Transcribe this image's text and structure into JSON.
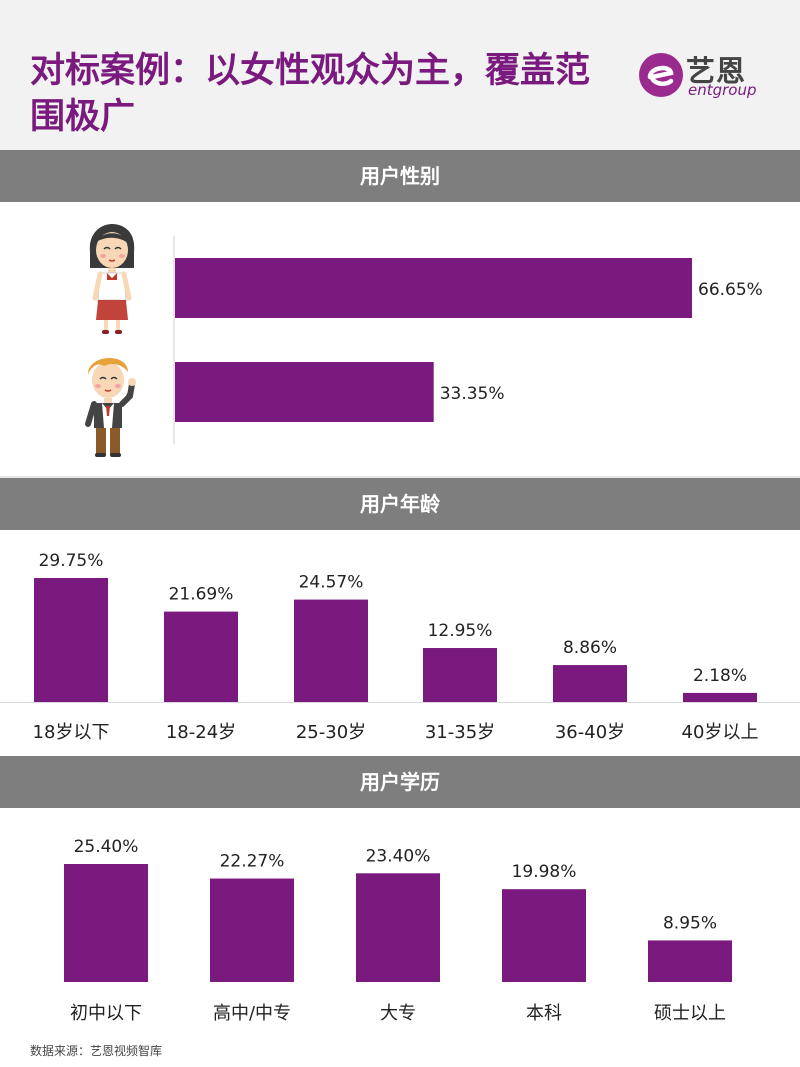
{
  "title": "对标案例：以女性观众为主，覆盖范围极广",
  "logo": {
    "cn": "艺恩",
    "en": "entgroup"
  },
  "source": "数据来源：艺恩视频智库",
  "colors": {
    "bar": "#7a1a7e",
    "header": "#7f7e7f",
    "title": "#7a1a7e"
  },
  "sections": {
    "gender": {
      "header": "用户性别"
    },
    "age": {
      "header": "用户年龄"
    },
    "education": {
      "header": "用户学历"
    }
  },
  "chart_data": [
    {
      "type": "bar",
      "orientation": "horizontal",
      "title": "用户性别",
      "categories": [
        "female-icon",
        "male-icon"
      ],
      "values": [
        66.65,
        33.35
      ],
      "value_labels": [
        "66.65%",
        "33.35%"
      ],
      "xlim": [
        0,
        66.65
      ]
    },
    {
      "type": "bar",
      "title": "用户年龄",
      "categories": [
        "18岁以下",
        "18-24岁",
        "25-30岁",
        "31-35岁",
        "36-40岁",
        "40岁以上"
      ],
      "values": [
        29.75,
        21.69,
        24.57,
        12.95,
        8.86,
        2.18
      ],
      "value_labels": [
        "29.75%",
        "21.69%",
        "24.57%",
        "12.95%",
        "8.86%",
        "2.18%"
      ],
      "ylim": [
        0,
        29.75
      ]
    },
    {
      "type": "bar",
      "title": "用户学历",
      "categories": [
        "初中以下",
        "高中/中专",
        "大专",
        "本科",
        "硕士以上"
      ],
      "values": [
        25.4,
        22.27,
        23.4,
        19.98,
        8.95
      ],
      "value_labels": [
        "25.40%",
        "22.27%",
        "23.40%",
        "19.98%",
        "8.95%"
      ],
      "ylim": [
        0,
        25.4
      ]
    }
  ]
}
